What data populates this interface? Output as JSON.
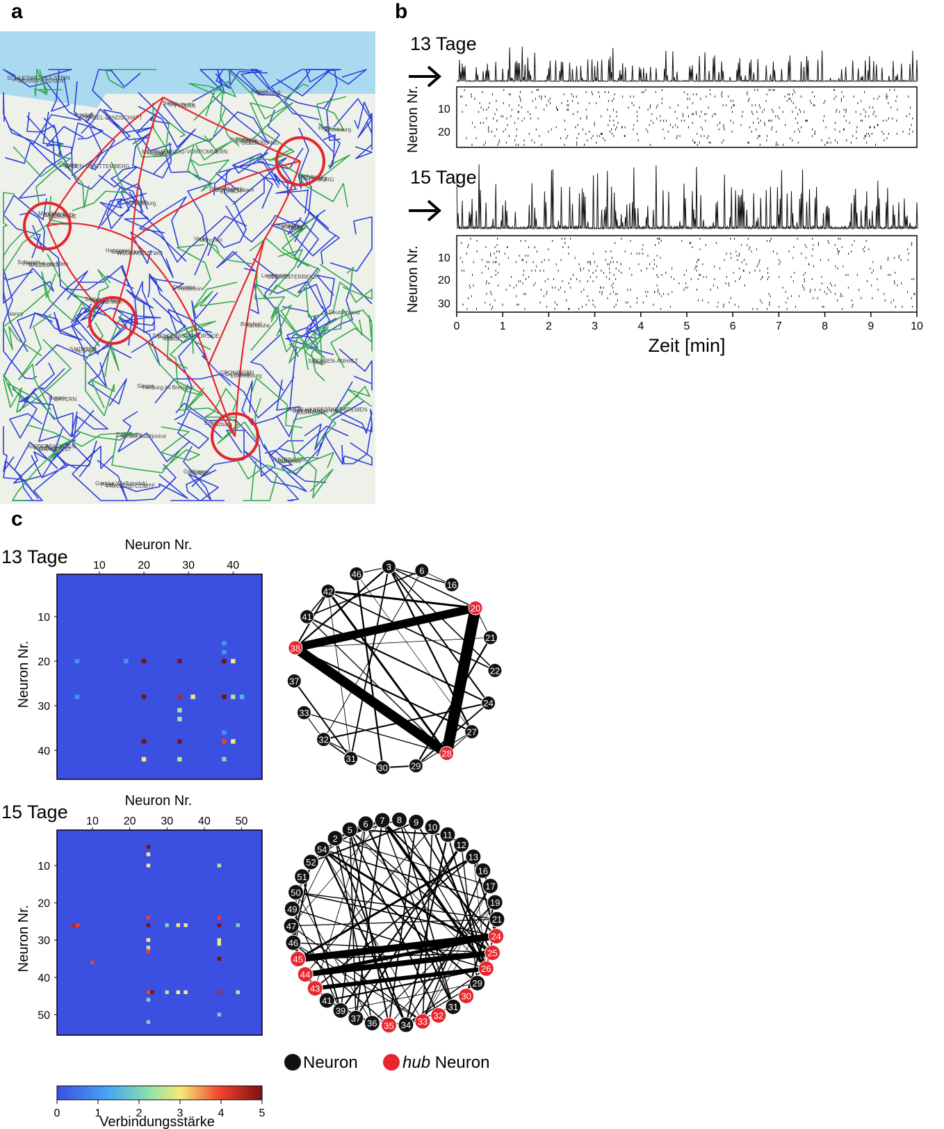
{
  "panels": {
    "a": {
      "letter": "a",
      "map_labels": [
        "SCHLESWIG-HOLSTEIN",
        "Rostock",
        "MECKLENBURG-VORPOMMERN",
        "Bremerhaven",
        "Hamburg",
        "Schwerin",
        "Swinoujscie",
        "ZACHODNIOPOMORSKIE",
        "GRONINGEN",
        "FREIE HANSESTADT BREMEN",
        "NIEDERSACHSEN",
        "Gorzów Wielkopolski",
        "Berlin",
        "Osnabrück",
        "Wolfsburg",
        "Magdeburg",
        "Hannover",
        "Deventer",
        "Bielefeld",
        "SACHSEN-ANHALT",
        "Hamm",
        "Paderborn",
        "Göttingen",
        "Kassel",
        "Halle",
        "Leipzig",
        "Dresden",
        "Venlo",
        "Leverkusen",
        "Deutschland",
        "SACHSEN",
        "Siegen",
        "Erfurt",
        "THÜRINGEN",
        "Jena",
        "Bonn",
        "HESSEN",
        "Ústí nad Labem",
        "Koblenz",
        "Frankfurt am Main",
        "Karlovy Vary",
        "Praha",
        "Darmstadt",
        "RHEINLAND-PFALZ",
        "Würzburg",
        "Plzeň",
        "Mannheim",
        "Erlangen",
        "Nürnberg",
        "SAARLAND",
        "Saarbrücken",
        "Heilbronn",
        "Karlsruhe",
        "Metz",
        "BAYERN",
        "České Budějovice",
        "Stuttgart",
        "Ingolstadt",
        "Strasbourg",
        "BADEN-WÜRTTEMBERG",
        "Augsburg",
        "München",
        "OBERÖSTERREICH",
        "Nancy",
        "ALSACE",
        "Freiburg im Breisgau",
        "Salzburg",
        "Mulhouse",
        "SCHAFFHAUSEN",
        "BASEL-LANDSCHAFT",
        "JURA",
        "ZÜRICH",
        "TIROL",
        "SALZBURG",
        "Österreich",
        "erland",
        "Luxembourg",
        "LORRAINE",
        "GRAND EST",
        "FRANCHE-COMTÉ",
        "TYSLÄN",
        "GELDERLAND",
        "LIMBURG",
        "LUBUSKIE",
        "WOJEWÓDZTWO"
      ],
      "road_colors": {
        "motorway": "#e3262d",
        "federal": "#2a3fd8",
        "regional": "#2fa84a",
        "circle": "#e3262d"
      }
    },
    "b": {
      "letter": "b",
      "rows": [
        {
          "label": "13 Tage",
          "ylabel": "Neuron Nr.",
          "yticks": [
            "10",
            "20"
          ],
          "neurons": 26
        },
        {
          "label": "15 Tage",
          "ylabel": "Neuron Nr.",
          "yticks": [
            "10",
            "20",
            "30"
          ],
          "neurons": 34
        }
      ],
      "xlabel": "Zeit [min]",
      "xticks": [
        "0",
        "1",
        "2",
        "3",
        "4",
        "5",
        "6",
        "7",
        "8",
        "9",
        "10"
      ]
    },
    "c": {
      "letter": "c",
      "matrices": [
        {
          "label": "13 Tage",
          "xlabel": "Neuron Nr.",
          "ylabel": "Neuron Nr.",
          "xticks": [
            "10",
            "20",
            "30",
            "40"
          ],
          "yticks": [
            "10",
            "20",
            "30",
            "40"
          ],
          "size": 46
        },
        {
          "label": "15 Tage",
          "xlabel": "Neuron Nr.",
          "ylabel": "Neuron Nr.",
          "xticks": [
            "10",
            "20",
            "30",
            "40",
            "50"
          ],
          "yticks": [
            "10",
            "20",
            "30",
            "40",
            "50"
          ],
          "size": 55
        }
      ],
      "colorbar": {
        "label": "Verbindungsstärke",
        "ticks": [
          "0",
          "1",
          "2",
          "3",
          "4",
          "5"
        ]
      },
      "graphs": [
        {
          "nodes": [
            "3",
            "6",
            "16",
            "20",
            "21",
            "22",
            "24",
            "27",
            "28",
            "29",
            "30",
            "31",
            "32",
            "33",
            "37",
            "38",
            "41",
            "42",
            "46"
          ],
          "hubs": [
            "20",
            "28",
            "38"
          ]
        },
        {
          "nodes": [
            "2",
            "5",
            "6",
            "7",
            "8",
            "9",
            "10",
            "11",
            "12",
            "13",
            "16",
            "17",
            "19",
            "21",
            "24",
            "25",
            "26",
            "29",
            "30",
            "31",
            "32",
            "33",
            "34",
            "35",
            "36",
            "37",
            "39",
            "41",
            "43",
            "44",
            "45",
            "46",
            "47",
            "49",
            "50",
            "51",
            "52",
            "54"
          ],
          "hubs": [
            "24",
            "25",
            "26",
            "30",
            "32",
            "33",
            "35",
            "43",
            "44",
            "45"
          ]
        }
      ],
      "legend": {
        "neuron": "Neuron",
        "hub_prefix": "hub",
        "hub_suffix": " Neuron"
      },
      "colors": {
        "hub": "#e8262e",
        "neuron": "#111111"
      }
    }
  },
  "chart_data": [
    {
      "type": "heatmap",
      "title": "13 Tage",
      "xlabel": "Neuron Nr.",
      "ylabel": "Neuron Nr.",
      "xlim": [
        1,
        46
      ],
      "ylim": [
        1,
        46
      ],
      "zlim": [
        0,
        5
      ],
      "cells": [
        [
          20,
          20,
          5
        ],
        [
          20,
          28,
          5
        ],
        [
          20,
          38,
          5
        ],
        [
          28,
          20,
          5
        ],
        [
          28,
          28,
          4.5
        ],
        [
          28,
          38,
          5
        ],
        [
          38,
          20,
          5
        ],
        [
          38,
          28,
          5
        ],
        [
          38,
          38,
          4
        ],
        [
          20,
          40,
          3
        ],
        [
          28,
          31,
          3
        ],
        [
          28,
          40,
          2.5
        ],
        [
          38,
          40,
          3
        ],
        [
          42,
          20,
          3
        ],
        [
          42,
          28,
          2.5
        ],
        [
          42,
          38,
          2
        ],
        [
          31,
          28,
          2.5
        ],
        [
          33,
          28,
          2.5
        ],
        [
          28,
          42,
          1.5
        ],
        [
          20,
          16,
          1
        ],
        [
          16,
          38,
          1
        ],
        [
          18,
          38,
          1
        ],
        [
          20,
          5,
          1
        ],
        [
          28,
          5,
          1
        ],
        [
          36,
          38,
          1
        ]
      ]
    },
    {
      "type": "heatmap",
      "title": "15 Tage",
      "xlabel": "Neuron Nr.",
      "ylabel": "Neuron Nr.",
      "xlim": [
        1,
        55
      ],
      "ylim": [
        1,
        55
      ],
      "zlim": [
        0,
        5
      ],
      "cells": [
        [
          26,
          25,
          5
        ],
        [
          26,
          44,
          5
        ],
        [
          26,
          5,
          4.5
        ],
        [
          26,
          6,
          4
        ],
        [
          44,
          26,
          5
        ],
        [
          44,
          44,
          4.5
        ],
        [
          44,
          25,
          4
        ],
        [
          24,
          25,
          4
        ],
        [
          24,
          44,
          4
        ],
        [
          33,
          25,
          4
        ],
        [
          35,
          44,
          5
        ],
        [
          36,
          10,
          4
        ],
        [
          5,
          25,
          5
        ],
        [
          7,
          25,
          3
        ],
        [
          10,
          25,
          3
        ],
        [
          26,
          33,
          3
        ],
        [
          26,
          35,
          3
        ],
        [
          44,
          33,
          3
        ],
        [
          44,
          35,
          3
        ],
        [
          30,
          25,
          3
        ],
        [
          31,
          44,
          3
        ],
        [
          32,
          25,
          2.5
        ],
        [
          30,
          44,
          3
        ],
        [
          44,
          30,
          2.5
        ],
        [
          26,
          30,
          2
        ],
        [
          52,
          25,
          2
        ],
        [
          50,
          44,
          2
        ],
        [
          46,
          25,
          2
        ],
        [
          10,
          44,
          2.5
        ],
        [
          26,
          49,
          2
        ],
        [
          44,
          49,
          2.5
        ]
      ]
    }
  ]
}
